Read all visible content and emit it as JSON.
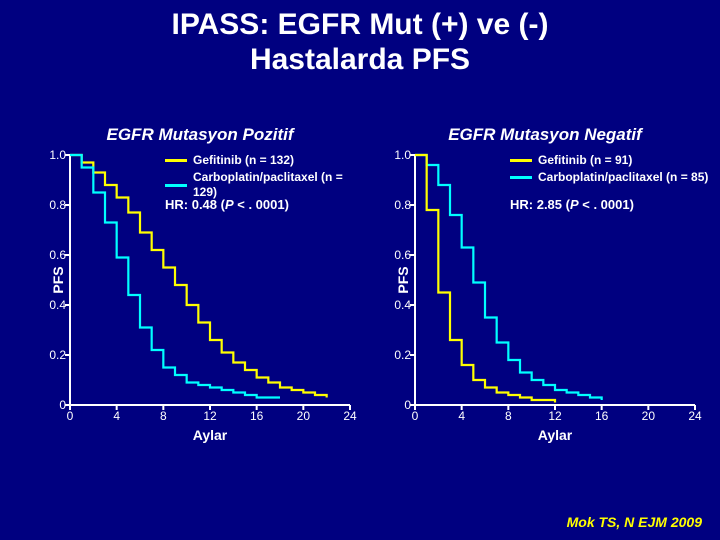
{
  "colors": {
    "background": "#000080",
    "text": "#ffffff",
    "citation": "#ffff00",
    "axis": "#ffffff",
    "series_a": "#ffff00",
    "series_b": "#00ffff"
  },
  "title_line1": "IPASS: EGFR Mut (+) ve (-)",
  "title_line2": "Hastalarda PFS",
  "citation": "Mok TS, N EJM 2009",
  "axis": {
    "x_label": "Aylar",
    "y_label": "PFS",
    "x_min": 0,
    "x_max": 24,
    "x_step": 4,
    "y_min": 0,
    "y_max": 1.0,
    "y_step_label": 0.2,
    "y_tick_labels": [
      "0",
      "0.2",
      "0.4",
      "0.6",
      "0.8",
      "1.0"
    ],
    "x_tick_labels": [
      "0",
      "4",
      "8",
      "12",
      "16",
      "20",
      "24"
    ],
    "line_width": 2,
    "tick_len": 5,
    "curve_width": 2.2
  },
  "panel_left": {
    "title": "EGFR  Mutasyon Pozitif",
    "legend": [
      {
        "label": "Gefitinib (n = 132)",
        "color_key": "series_a"
      },
      {
        "label": "Carboplatin/paclitaxel (n = 129)",
        "color_key": "series_b"
      }
    ],
    "hr_prefix": "HR: 0.48   (",
    "hr_italic": "P",
    "hr_suffix": " < . 0001)",
    "series": [
      {
        "color_key": "series_a",
        "points": [
          [
            0,
            1.0
          ],
          [
            1,
            0.97
          ],
          [
            2,
            0.93
          ],
          [
            3,
            0.88
          ],
          [
            4,
            0.83
          ],
          [
            5,
            0.77
          ],
          [
            6,
            0.69
          ],
          [
            7,
            0.62
          ],
          [
            8,
            0.55
          ],
          [
            9,
            0.48
          ],
          [
            10,
            0.4
          ],
          [
            11,
            0.33
          ],
          [
            12,
            0.26
          ],
          [
            13,
            0.21
          ],
          [
            14,
            0.17
          ],
          [
            15,
            0.14
          ],
          [
            16,
            0.11
          ],
          [
            17,
            0.09
          ],
          [
            18,
            0.07
          ],
          [
            19,
            0.06
          ],
          [
            20,
            0.05
          ],
          [
            21,
            0.04
          ],
          [
            22,
            0.03
          ]
        ]
      },
      {
        "color_key": "series_b",
        "points": [
          [
            0,
            1.0
          ],
          [
            1,
            0.95
          ],
          [
            2,
            0.85
          ],
          [
            3,
            0.73
          ],
          [
            4,
            0.59
          ],
          [
            5,
            0.44
          ],
          [
            6,
            0.31
          ],
          [
            7,
            0.22
          ],
          [
            8,
            0.15
          ],
          [
            9,
            0.12
          ],
          [
            10,
            0.09
          ],
          [
            11,
            0.08
          ],
          [
            12,
            0.07
          ],
          [
            13,
            0.06
          ],
          [
            14,
            0.05
          ],
          [
            15,
            0.04
          ],
          [
            16,
            0.03
          ],
          [
            17,
            0.03
          ],
          [
            18,
            0.03
          ]
        ]
      }
    ]
  },
  "panel_right": {
    "title": "EGFR  Mutasyon Negatif",
    "legend": [
      {
        "label": "Gefitinib (n = 91)",
        "color_key": "series_a"
      },
      {
        "label": "Carboplatin/paclitaxel (n = 85)",
        "color_key": "series_b"
      }
    ],
    "hr_prefix": "HR: 2.85  (",
    "hr_italic": "P",
    "hr_suffix": " < . 0001)",
    "series": [
      {
        "color_key": "series_b",
        "points": [
          [
            0,
            1.0
          ],
          [
            1,
            0.96
          ],
          [
            2,
            0.88
          ],
          [
            3,
            0.76
          ],
          [
            4,
            0.63
          ],
          [
            5,
            0.49
          ],
          [
            6,
            0.35
          ],
          [
            7,
            0.25
          ],
          [
            8,
            0.18
          ],
          [
            9,
            0.13
          ],
          [
            10,
            0.1
          ],
          [
            11,
            0.08
          ],
          [
            12,
            0.06
          ],
          [
            13,
            0.05
          ],
          [
            14,
            0.04
          ],
          [
            15,
            0.03
          ],
          [
            16,
            0.02
          ]
        ]
      },
      {
        "color_key": "series_a",
        "points": [
          [
            0,
            1.0
          ],
          [
            1,
            0.78
          ],
          [
            2,
            0.45
          ],
          [
            3,
            0.26
          ],
          [
            4,
            0.16
          ],
          [
            5,
            0.1
          ],
          [
            6,
            0.07
          ],
          [
            7,
            0.05
          ],
          [
            8,
            0.04
          ],
          [
            9,
            0.03
          ],
          [
            10,
            0.02
          ],
          [
            11,
            0.02
          ],
          [
            12,
            0.01
          ]
        ]
      }
    ]
  }
}
